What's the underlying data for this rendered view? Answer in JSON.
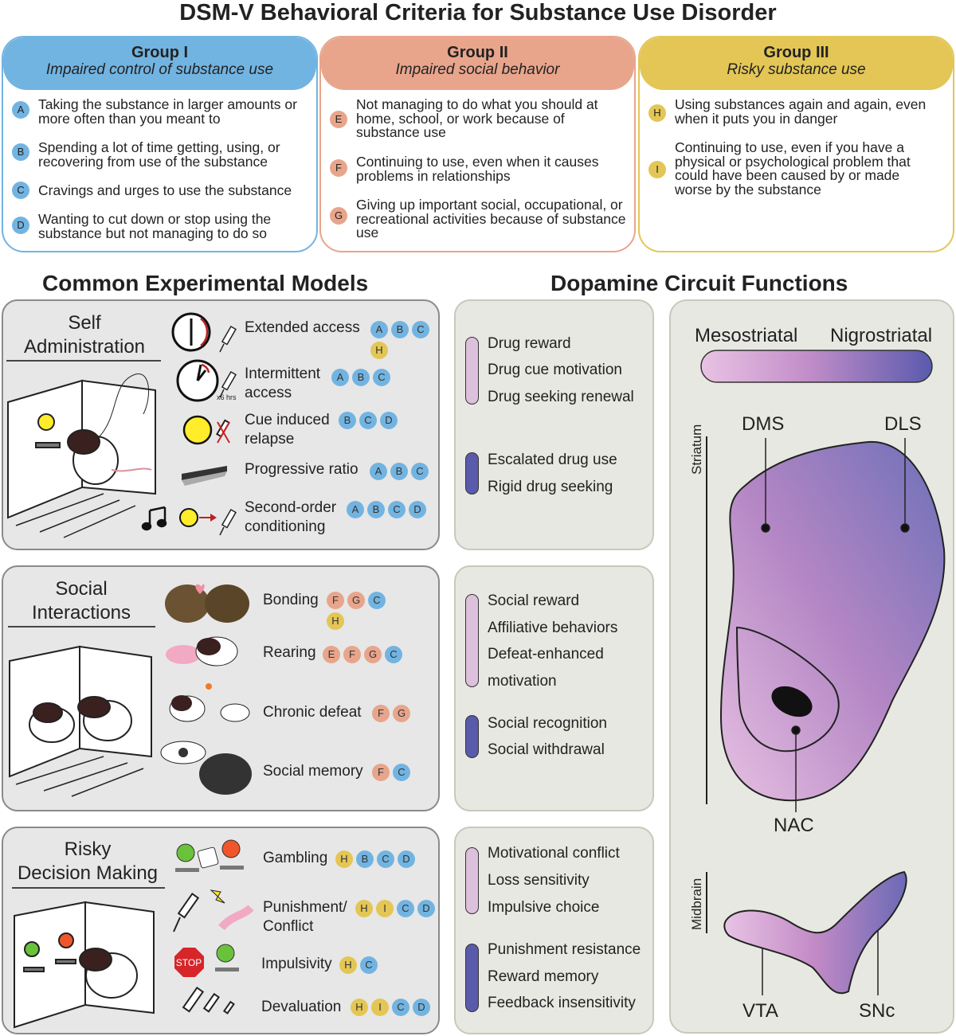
{
  "title": "DSM-V Behavioral Criteria for Substance Use Disorder",
  "colors": {
    "group1": "#72b4e1",
    "group2": "#e8a58c",
    "group3": "#e3c655",
    "purple_light": "#e3bde0",
    "purple_dark": "#5a5aad"
  },
  "groups": [
    {
      "name": "Group I",
      "subtitle": "Impaired control of substance use",
      "criteria": [
        {
          "letter": "A",
          "text": "Taking the substance in larger amounts or more often than you meant to"
        },
        {
          "letter": "B",
          "text": "Spending a lot of time getting, using, or recovering from use of the substance"
        },
        {
          "letter": "C",
          "text": "Cravings and urges to use the substance"
        },
        {
          "letter": "D",
          "text": "Wanting to cut down or stop using the substance but not managing to do so"
        }
      ]
    },
    {
      "name": "Group II",
      "subtitle": "Impaired social behavior",
      "criteria": [
        {
          "letter": "E",
          "text": "Not managing to do what you should at home, school, or work because of substance use"
        },
        {
          "letter": "F",
          "text": "Continuing to use, even when it causes problems in relationships"
        },
        {
          "letter": "G",
          "text": "Giving up important social, occupational, or recreational activities because of substance use"
        }
      ]
    },
    {
      "name": "Group III",
      "subtitle": "Risky substance use",
      "criteria": [
        {
          "letter": "H",
          "text": "Using substances again and again, even when it puts you in danger"
        },
        {
          "letter": "I",
          "text": "Continuing to use, even if you have a physical or psychological problem that could have been caused by or made worse by the substance"
        }
      ]
    }
  ],
  "models_heading": "Common Experimental Models",
  "functions_heading": "Dopamine Circuit Functions",
  "models": [
    {
      "title1": "Self",
      "title2": "Administration",
      "items": [
        {
          "label": "Extended access",
          "badges": [
            "A",
            "B",
            "C",
            "H"
          ]
        },
        {
          "label": "Intermittent access",
          "badges": [
            "A",
            "B",
            "C"
          ],
          "note": "x6 hrs"
        },
        {
          "label": "Cue induced relapse",
          "badges": [
            "B",
            "C",
            "D"
          ]
        },
        {
          "label": "Progressive ratio",
          "badges": [
            "A",
            "B",
            "C"
          ]
        },
        {
          "label": "Second-order conditioning",
          "badges": [
            "A",
            "B",
            "C",
            "D"
          ]
        }
      ]
    },
    {
      "title1": "Social",
      "title2": "Interactions",
      "items": [
        {
          "label": "Bonding",
          "badges": [
            "F",
            "G",
            "C",
            "H"
          ]
        },
        {
          "label": "Rearing",
          "badges": [
            "E",
            "F",
            "G",
            "C"
          ]
        },
        {
          "label": "Chronic defeat",
          "badges": [
            "F",
            "G"
          ]
        },
        {
          "label": "Social memory",
          "badges": [
            "F",
            "C"
          ]
        }
      ]
    },
    {
      "title1": "Risky",
      "title2": "Decision Making",
      "items": [
        {
          "label": "Gambling",
          "badges": [
            "H",
            "B",
            "C",
            "D"
          ]
        },
        {
          "label": "Punishment/ Conflict",
          "badges": [
            "H",
            "I",
            "C",
            "D"
          ]
        },
        {
          "label": "Impulsivity",
          "badges": [
            "H",
            "C"
          ],
          "icon_text": "STOP"
        },
        {
          "label": "Devaluation",
          "badges": [
            "H",
            "I",
            "C",
            "D"
          ]
        }
      ]
    }
  ],
  "functions": [
    {
      "mesostriatal": [
        "Drug reward",
        "Drug cue motivation",
        "Drug seeking renewal"
      ],
      "nigrostriatal": [
        "Escalated drug use",
        "Rigid drug seeking"
      ]
    },
    {
      "mesostriatal": [
        "Social reward",
        "Affiliative behaviors",
        "Defeat-enhanced",
        "motivation"
      ],
      "nigrostriatal": [
        "Social recognition",
        "Social withdrawal"
      ]
    },
    {
      "mesostriatal": [
        "Motivational conflict",
        "Loss sensitivity",
        "Impulsive choice"
      ],
      "nigrostriatal": [
        "Punishment resistance",
        "Reward memory",
        "Feedback insensitivity"
      ]
    }
  ],
  "circuit": {
    "mesostriatal": "Mesostriatal",
    "nigrostriatal": "Nigrostriatal",
    "striatum": "Striatum",
    "midbrain": "Midbrain",
    "dms": "DMS",
    "dls": "DLS",
    "nac": "NAC",
    "vta": "VTA",
    "snc": "SNc"
  }
}
